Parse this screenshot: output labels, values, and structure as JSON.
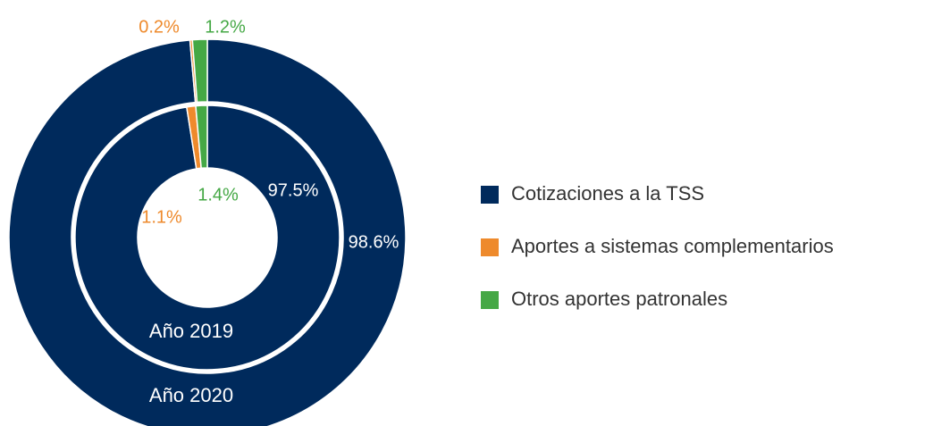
{
  "chart_data": {
    "type": "donut",
    "categories": [
      "Cotizaciones a la TSS",
      "Aportes a sistemas complementarios",
      "Otros aportes patronales"
    ],
    "colors": [
      "#002a5c",
      "#ee8a2c",
      "#45a845"
    ],
    "series": [
      {
        "name": "Año 2020",
        "values": [
          98.6,
          0.2,
          1.2
        ],
        "value_labels": [
          "98.6%",
          "0.2%",
          "1.2%"
        ]
      },
      {
        "name": "Año 2019",
        "values": [
          97.5,
          1.1,
          1.4
        ],
        "value_labels": [
          "97.5%",
          "1.1%",
          "1.4%"
        ]
      }
    ]
  }
}
